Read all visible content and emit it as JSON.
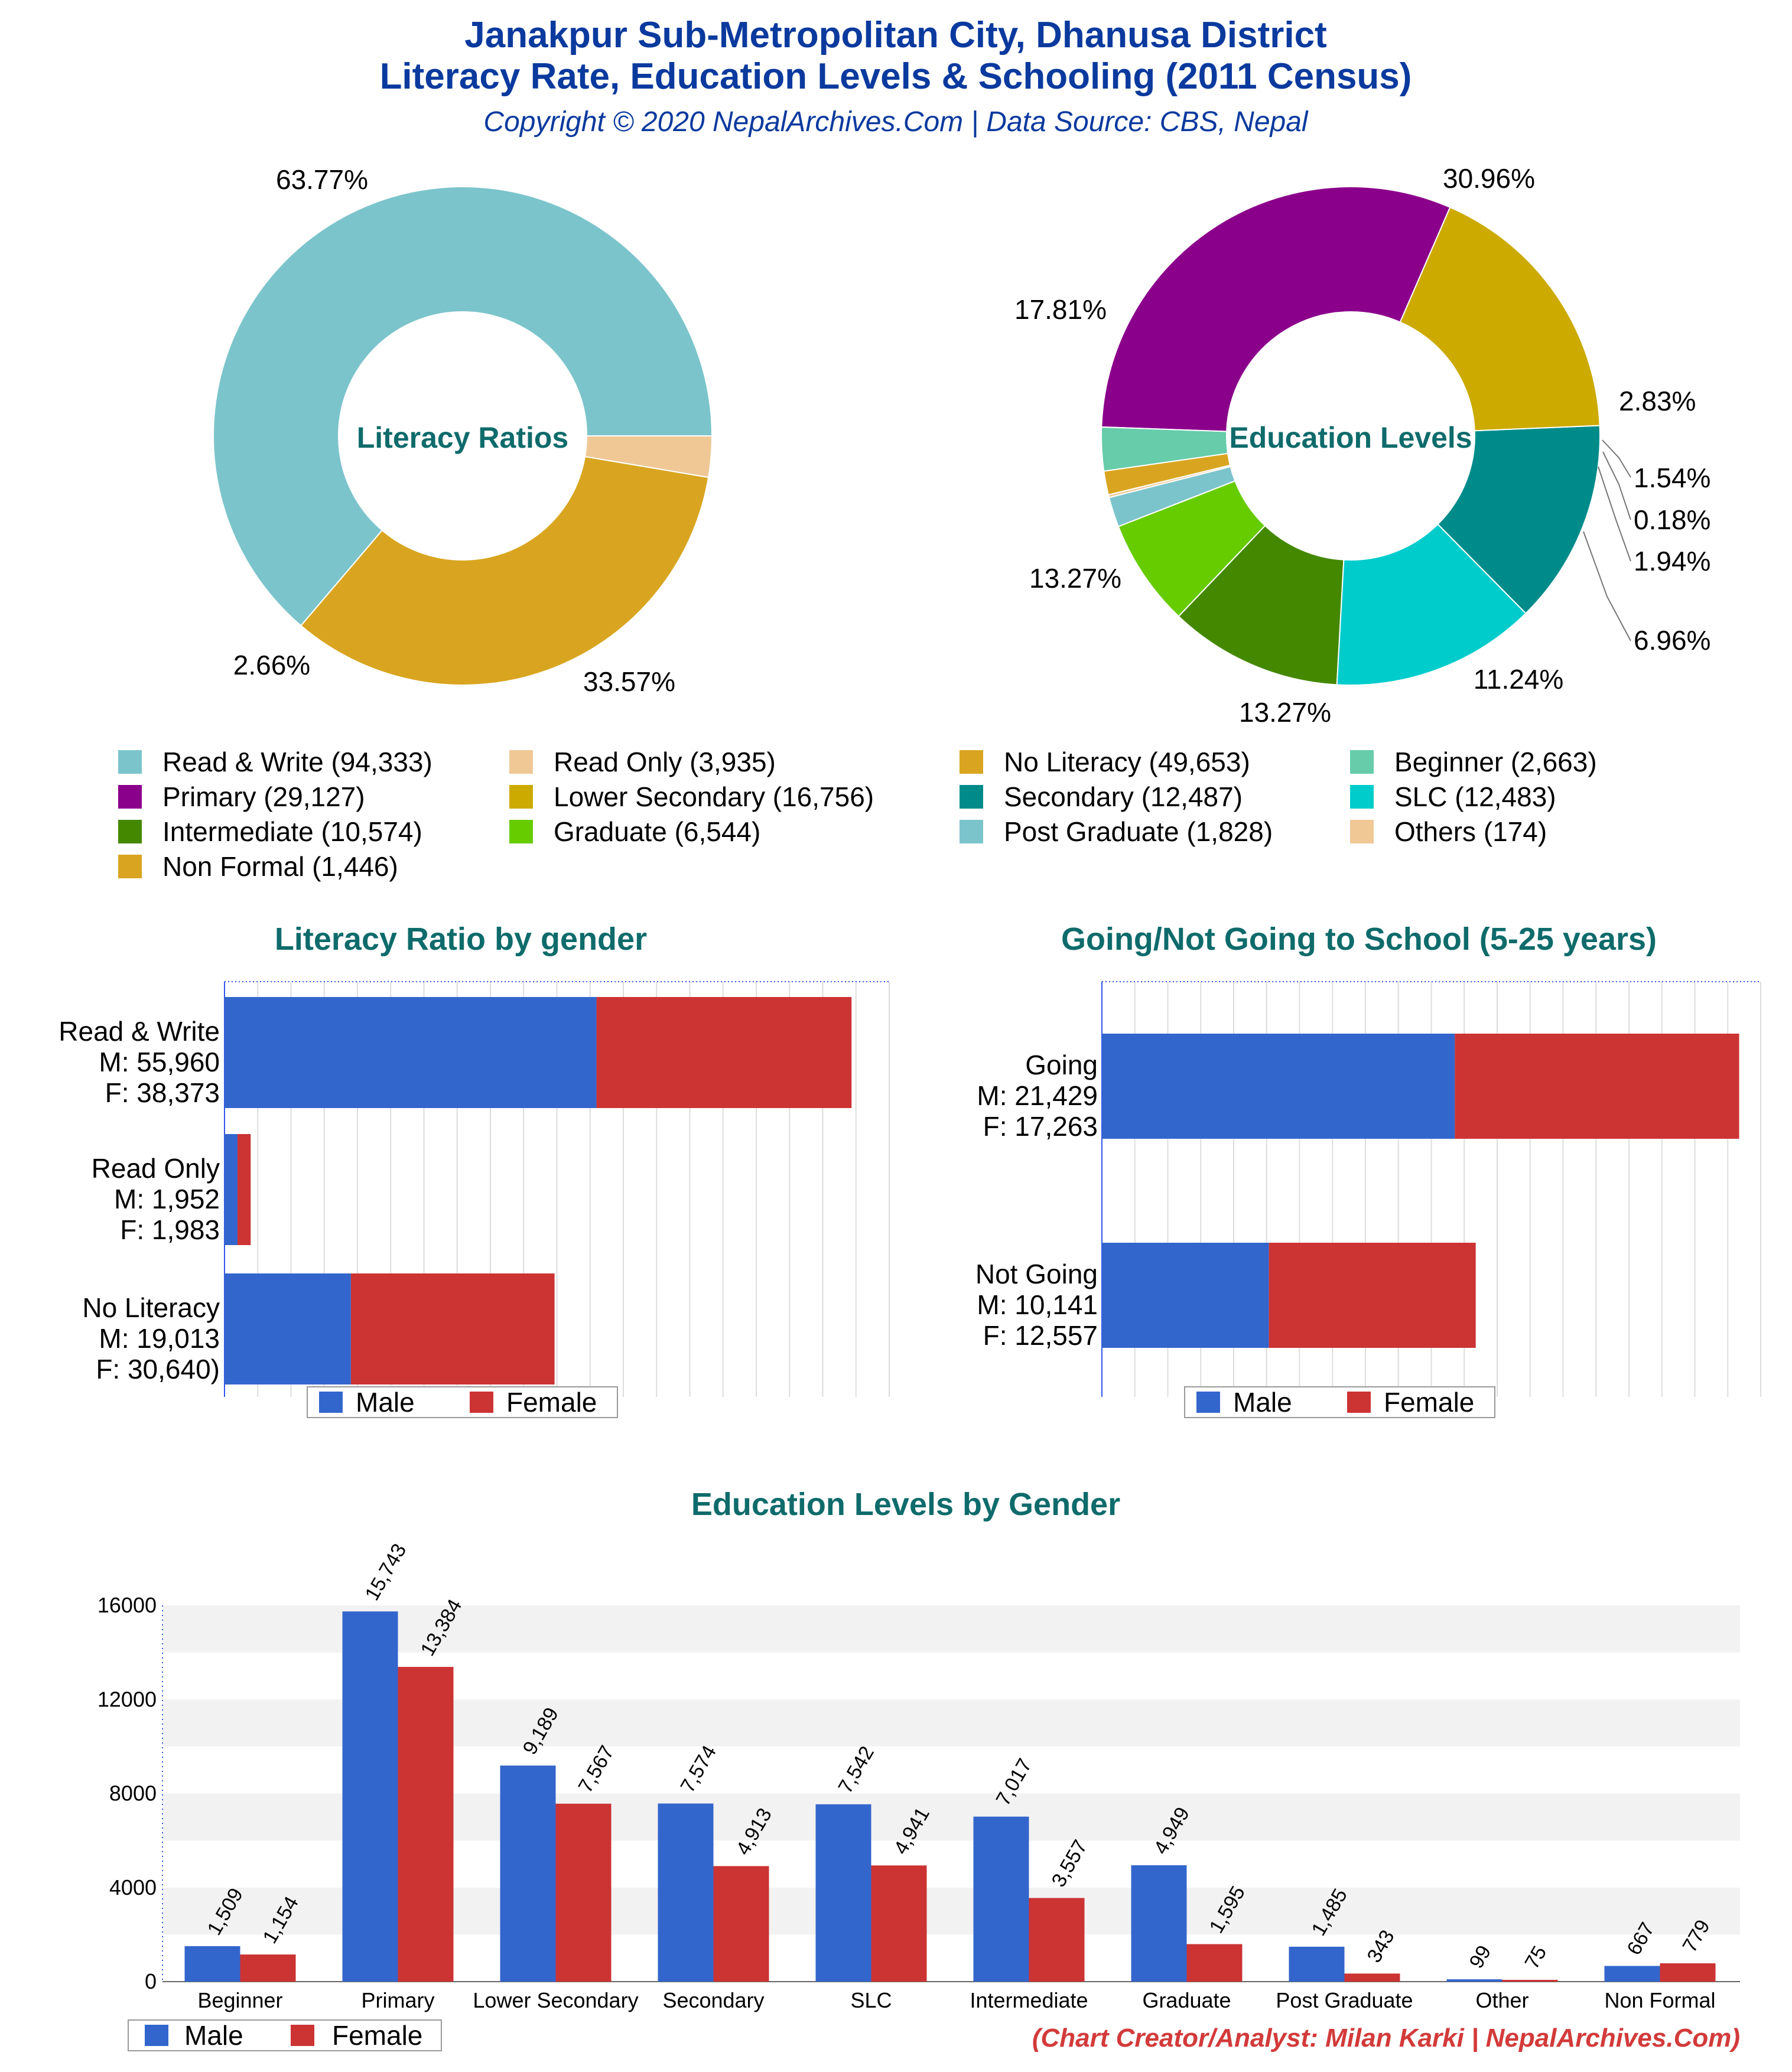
{
  "header": {
    "title_line1": "Janakpur Sub-Metropolitan City, Dhanusa District",
    "title_line2": "Literacy Rate, Education Levels & Schooling (2011 Census)",
    "subtitle": "Copyright © 2020 NepalArchives.Com | Data Source: CBS, Nepal"
  },
  "colors": {
    "male": "#3366cc",
    "female": "#cc3333",
    "title": "#0b3a9e",
    "section": "#0f6b6b",
    "credit": "#d33a3a"
  },
  "legend_pie": [
    {
      "label": "Read & Write (94,333)",
      "color": "#7cc4cc"
    },
    {
      "label": "Read Only (3,935)",
      "color": "#f0c896"
    },
    {
      "label": "No Literacy (49,653)",
      "color": "#d9a520"
    },
    {
      "label": "Beginner (2,663)",
      "color": "#66ccaa"
    },
    {
      "label": "Primary (29,127)",
      "color": "#8b008b"
    },
    {
      "label": "Lower Secondary (16,756)",
      "color": "#ccaa00"
    },
    {
      "label": "Secondary (12,487)",
      "color": "#008b8b"
    },
    {
      "label": "SLC (12,483)",
      "color": "#00cccc"
    },
    {
      "label": "Intermediate (10,574)",
      "color": "#448800"
    },
    {
      "label": "Graduate (6,544)",
      "color": "#66cc00"
    },
    {
      "label": "Post Graduate (1,828)",
      "color": "#7cc4cc"
    },
    {
      "label": "Others (174)",
      "color": "#f0c896"
    },
    {
      "label": "Non Formal (1,446)",
      "color": "#d9a520"
    }
  ],
  "chart_data": [
    {
      "type": "pie",
      "title": "Literacy Ratios",
      "labels": [
        "Read & Write",
        "No Literacy",
        "Read Only"
      ],
      "values": [
        63.77,
        33.57,
        2.66
      ],
      "value_labels": [
        "63.77%",
        "33.57%",
        "2.66%"
      ],
      "colors": [
        "#7cc4cc",
        "#d9a520",
        "#f0c896"
      ],
      "donut": true
    },
    {
      "type": "pie",
      "title": "Education Levels",
      "labels": [
        "Primary",
        "Beginner",
        "Non Formal",
        "Others",
        "Post Graduate",
        "Graduate",
        "Intermediate",
        "SLC",
        "Secondary",
        "Lower Secondary"
      ],
      "values": [
        30.96,
        2.83,
        1.54,
        0.18,
        1.94,
        6.96,
        11.24,
        13.27,
        13.27,
        17.81
      ],
      "value_labels": [
        "30.96%",
        "2.83%",
        "1.54%",
        "0.18%",
        "1.94%",
        "6.96%",
        "11.24%",
        "13.27%",
        "13.27%",
        "17.81%"
      ],
      "colors": [
        "#8b008b",
        "#66ccaa",
        "#d9a520",
        "#f0c896",
        "#7cc4cc",
        "#66cc00",
        "#448800",
        "#00cccc",
        "#008b8b",
        "#ccaa00"
      ],
      "donut": true
    },
    {
      "type": "bar",
      "orientation": "horizontal",
      "stacked": true,
      "title": "Literacy Ratio by gender",
      "categories": [
        "Read & Write",
        "Read Only",
        "No Literacy"
      ],
      "bar_labels": [
        [
          "Read & Write",
          "M: 55,960",
          "F: 38,373"
        ],
        [
          "Read Only",
          "M: 1,952",
          "F: 1,983"
        ],
        [
          "No Literacy",
          "M: 19,013",
          "F: 30,640)"
        ]
      ],
      "series": [
        {
          "name": "Male",
          "values": [
            55960,
            1952,
            19013
          ]
        },
        {
          "name": "Female",
          "values": [
            38373,
            1983,
            30640
          ]
        }
      ],
      "xlim": [
        0,
        100000
      ],
      "legend": "bottom"
    },
    {
      "type": "bar",
      "orientation": "horizontal",
      "stacked": true,
      "title": "Going/Not Going to School (5-25 years)",
      "categories": [
        "Going",
        "Not Going"
      ],
      "bar_labels": [
        [
          "Going",
          "M: 21,429",
          "F: 17,263"
        ],
        [
          "Not Going",
          "M: 10,141",
          "F: 12,557"
        ]
      ],
      "series": [
        {
          "name": "Male",
          "values": [
            21429,
            10141
          ]
        },
        {
          "name": "Female",
          "values": [
            17263,
            12557
          ]
        }
      ],
      "xlim": [
        0,
        40000
      ],
      "legend": "bottom"
    },
    {
      "type": "bar",
      "title": "Education Levels by Gender",
      "categories": [
        "Beginner",
        "Primary",
        "Lower Secondary",
        "Secondary",
        "SLC",
        "Intermediate",
        "Graduate",
        "Post Graduate",
        "Other",
        "Non Formal"
      ],
      "series": [
        {
          "name": "Male",
          "values": [
            1509,
            15743,
            9189,
            7574,
            7542,
            7017,
            4949,
            1485,
            99,
            667
          ],
          "value_labels": [
            "1,509",
            "15,743",
            "9,189",
            "7,574",
            "7,542",
            "7,017",
            "4,949",
            "1,485",
            "99",
            "667"
          ]
        },
        {
          "name": "Female",
          "values": [
            1154,
            13384,
            7567,
            4913,
            4941,
            3557,
            1595,
            343,
            75,
            779
          ],
          "value_labels": [
            "1,154",
            "13,384",
            "7,567",
            "4,913",
            "4,941",
            "3,557",
            "1,595",
            "343",
            "75",
            "779"
          ]
        }
      ],
      "yticks": [
        "0",
        "4000",
        "8000",
        "12000",
        "16000"
      ],
      "ylim": [
        0,
        16000
      ],
      "legend": "bottom-left"
    }
  ],
  "footer": {
    "credit": "(Chart Creator/Analyst: Milan Karki | NepalArchives.Com)"
  }
}
